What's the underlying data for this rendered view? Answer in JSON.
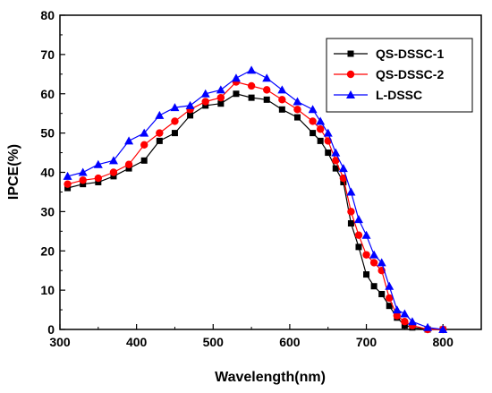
{
  "chart_data": {
    "type": "line",
    "xlabel": "Wavelength(nm)",
    "ylabel": "IPCE(%)",
    "xlim": [
      300,
      850
    ],
    "ylim": [
      0,
      80
    ],
    "xticks": [
      300,
      400,
      500,
      600,
      700,
      800
    ],
    "yticks": [
      0,
      10,
      20,
      30,
      40,
      50,
      60,
      70,
      80
    ],
    "grid": false,
    "legend_position": "top-right",
    "series": [
      {
        "name": "QS-DSSC-1",
        "color": "#000000",
        "marker": "square",
        "x": [
          310,
          330,
          350,
          370,
          390,
          410,
          430,
          450,
          470,
          490,
          510,
          530,
          550,
          570,
          590,
          610,
          630,
          640,
          650,
          660,
          670,
          680,
          690,
          700,
          710,
          720,
          730,
          740,
          750,
          760,
          780,
          800
        ],
        "y": [
          36,
          37,
          37.5,
          39,
          41,
          43,
          48,
          50,
          54.5,
          57,
          57.5,
          60,
          59,
          58.5,
          56,
          54,
          50,
          48,
          45,
          41,
          37.5,
          27,
          21,
          14,
          11,
          9,
          6,
          3,
          1,
          0.5,
          0,
          0
        ]
      },
      {
        "name": "QS-DSSC-2",
        "color": "#ff0000",
        "marker": "circle",
        "x": [
          310,
          330,
          350,
          370,
          390,
          410,
          430,
          450,
          470,
          490,
          510,
          530,
          550,
          570,
          590,
          610,
          630,
          640,
          650,
          660,
          670,
          680,
          690,
          700,
          710,
          720,
          730,
          740,
          750,
          760,
          780,
          800
        ],
        "y": [
          37,
          38,
          38.5,
          40,
          42,
          47,
          50,
          53,
          56,
          58,
          59,
          63,
          62,
          61,
          58.5,
          56,
          53,
          51,
          48,
          43,
          38.5,
          30,
          24,
          19,
          17,
          15,
          8,
          3.5,
          2,
          1,
          0,
          0
        ]
      },
      {
        "name": "L-DSSC",
        "color": "#0000ff",
        "marker": "triangle",
        "x": [
          310,
          330,
          350,
          370,
          390,
          410,
          430,
          450,
          470,
          490,
          510,
          530,
          550,
          570,
          590,
          610,
          630,
          640,
          650,
          660,
          670,
          680,
          690,
          700,
          710,
          720,
          730,
          740,
          750,
          760,
          780,
          800
        ],
        "y": [
          39,
          40,
          42,
          43,
          48,
          50,
          54.5,
          56.5,
          57,
          60,
          61,
          64,
          66,
          64,
          61,
          58,
          56,
          53,
          50,
          45,
          41,
          35,
          28,
          24,
          19,
          17,
          11,
          5,
          4,
          2,
          0.5,
          0
        ]
      }
    ]
  }
}
